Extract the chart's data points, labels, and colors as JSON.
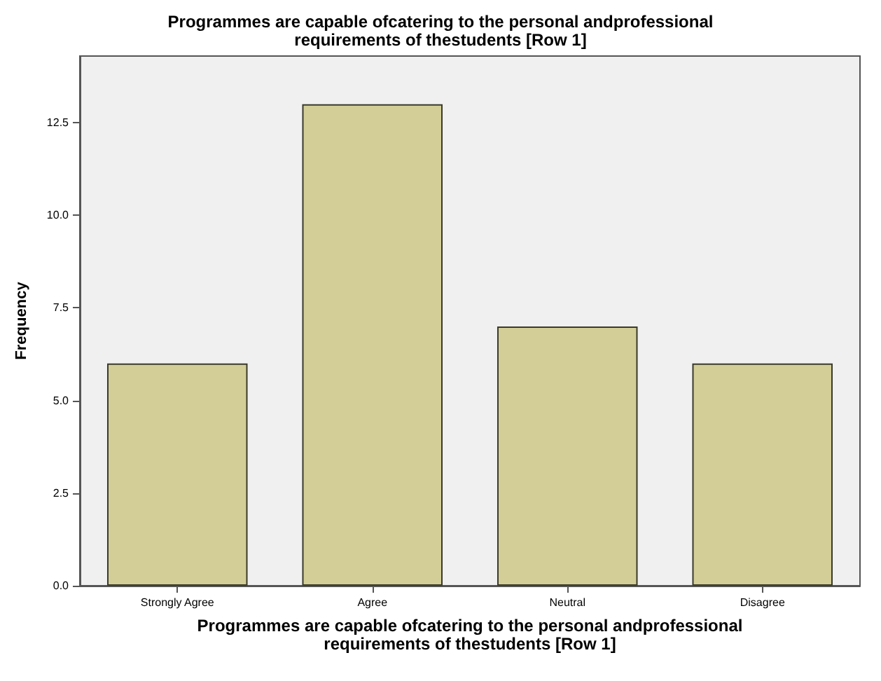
{
  "chart_data": {
    "type": "bar",
    "title": "Programmes are capable ofcatering to the personal andprofessional\nrequirements of thestudents [Row 1]",
    "xlabel": "Programmes are capable ofcatering to the personal andprofessional\nrequirements of thestudents [Row 1]",
    "ylabel": "Frequency",
    "categories": [
      "Strongly Agree",
      "Agree",
      "Neutral",
      "Disagree"
    ],
    "values": [
      6,
      13,
      7,
      6
    ],
    "color": "#d3ce97",
    "ylim": [
      0,
      14.3
    ],
    "yticks": [
      {
        "value": 0,
        "label": "0.0"
      },
      {
        "value": 2.5,
        "label": "2.5"
      },
      {
        "value": 5,
        "label": "5.0"
      },
      {
        "value": 7.5,
        "label": "7.5"
      },
      {
        "value": 10,
        "label": "10.0"
      },
      {
        "value": 12.5,
        "label": "12.5"
      }
    ],
    "grid": false
  }
}
